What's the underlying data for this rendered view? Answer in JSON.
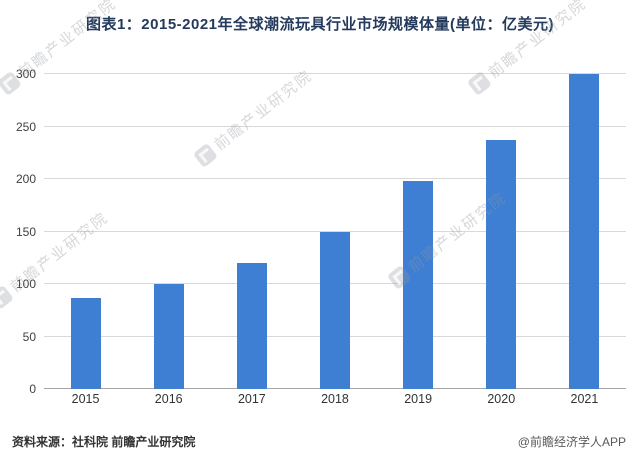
{
  "title": "图表1：2015-2021年全球潮流玩具行业市场规模体量(单位：亿美元)",
  "chart_data": {
    "type": "bar",
    "categories": [
      "2015",
      "2016",
      "2017",
      "2018",
      "2019",
      "2020",
      "2021"
    ],
    "values": [
      87,
      100,
      120,
      150,
      198,
      237,
      300
    ],
    "title": "图表1：2015-2021年全球潮流玩具行业市场规模体量(单位：亿美元)",
    "xlabel": "",
    "ylabel": "",
    "ylim": [
      0,
      300
    ],
    "yticks": [
      0,
      50,
      100,
      150,
      200,
      250,
      300
    ],
    "bar_color": "#3e7fd4",
    "grid": true,
    "legend": "none"
  },
  "footer": {
    "source": "资料来源：社科院 前瞻产业研究院",
    "credit": "@前瞻经济学人APP"
  },
  "watermark": {
    "text": "前瞻产业研究院"
  }
}
